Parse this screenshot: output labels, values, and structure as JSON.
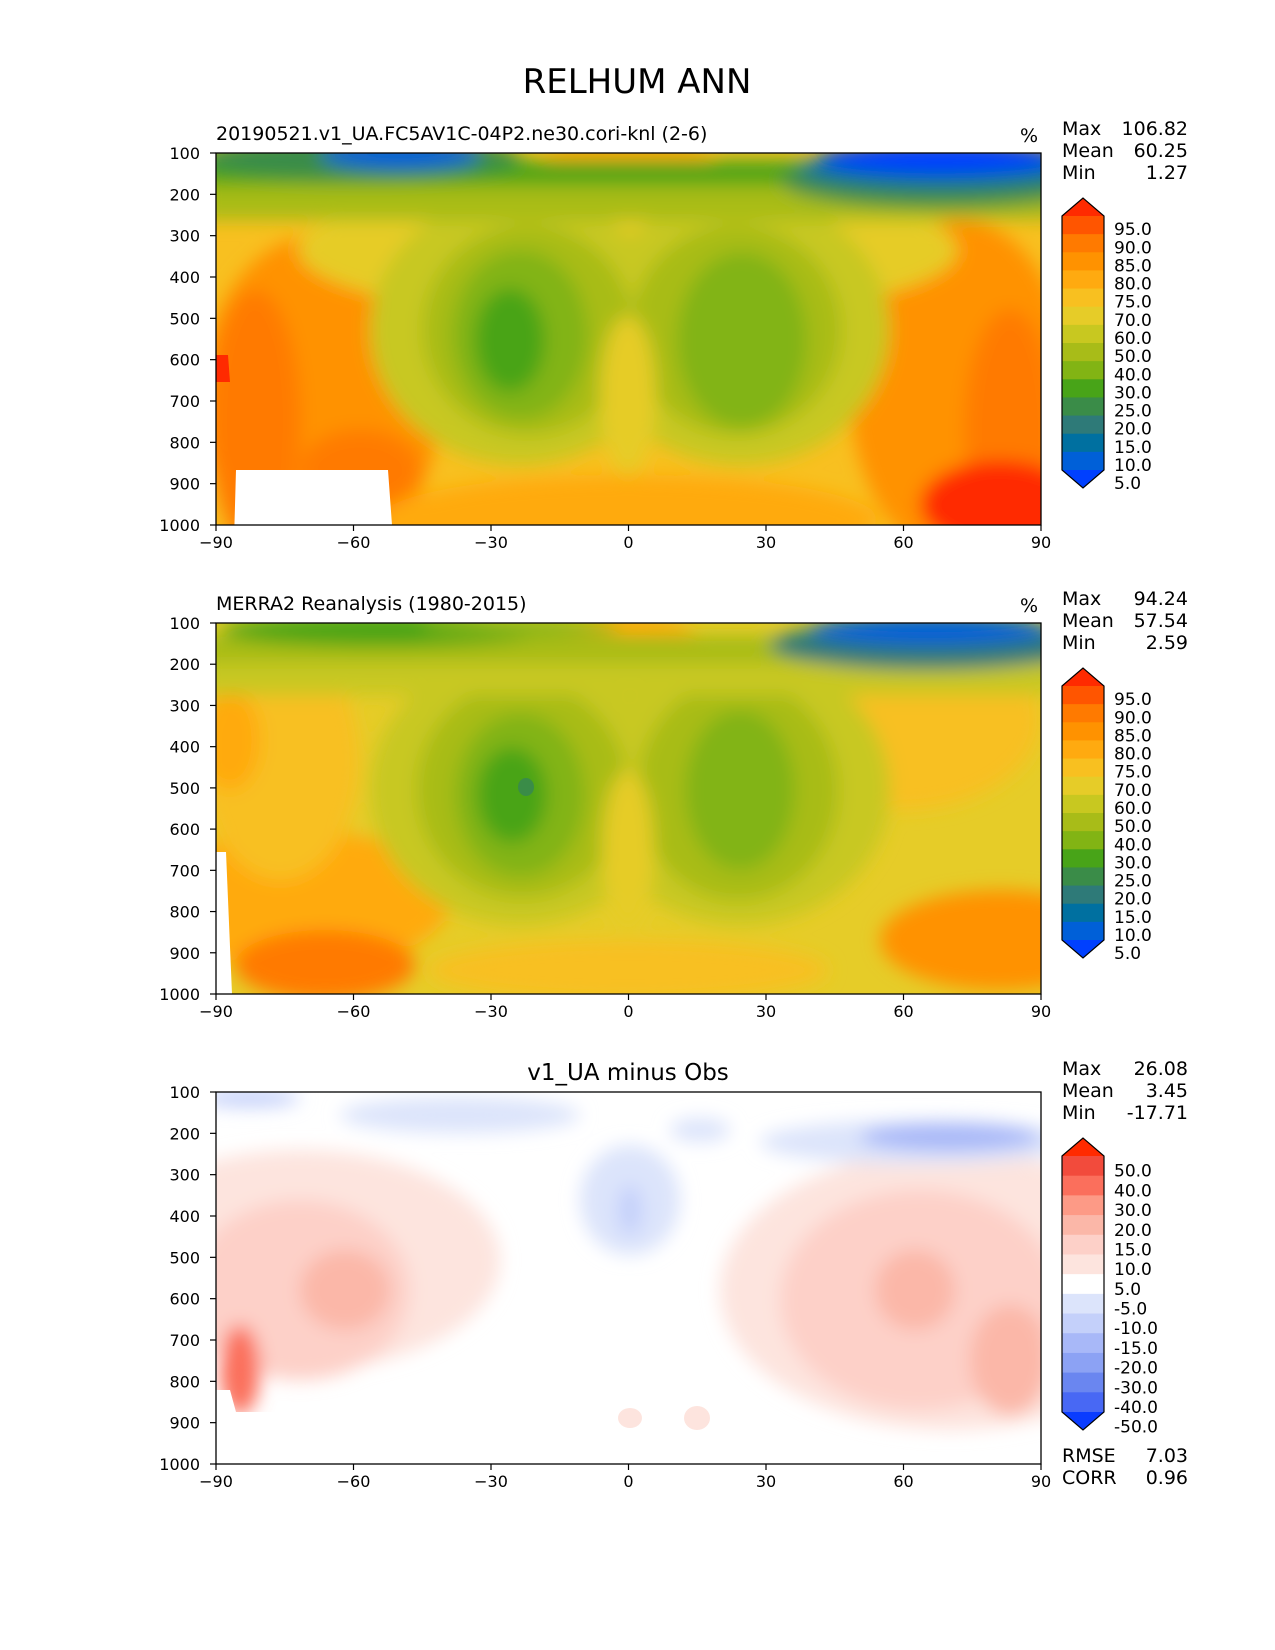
{
  "figure_title": "RELHUM ANN",
  "chart_data": [
    {
      "type": "contour",
      "title": "20190521.v1_UA.FC5AV1C-04P2.ne30.cori-knl (2-6)",
      "units": "%",
      "xlim": [
        -90,
        90
      ],
      "ylim": [
        1000,
        100
      ],
      "xticks": [
        "−90",
        "−60",
        "−30",
        "0",
        "30",
        "60",
        "90"
      ],
      "yticks": [
        "100",
        "200",
        "300",
        "400",
        "500",
        "600",
        "700",
        "800",
        "900",
        "1000"
      ],
      "stats": [
        {
          "label": "Max",
          "value": "106.82"
        },
        {
          "label": "Mean",
          "value": "60.25"
        },
        {
          "label": "Min",
          "value": "1.27"
        }
      ],
      "colorbar": {
        "labels": [
          "95.0",
          "90.0",
          "85.0",
          "80.0",
          "75.0",
          "70.0",
          "60.0",
          "50.0",
          "40.0",
          "30.0",
          "25.0",
          "20.0",
          "15.0",
          "10.0",
          "5.0"
        ],
        "colors": [
          "#ff2a00",
          "#ff5500",
          "#ff7a00",
          "#ff9200",
          "#ffaa10",
          "#f8c020",
          "#e6cc28",
          "#c8c820",
          "#a8bc18",
          "#82b414",
          "#48a418",
          "#3a8c48",
          "#2e7a78",
          "#0070a0",
          "#0060d8",
          "#0040ff"
        ]
      },
      "missing_region": "below-surface (white)"
    },
    {
      "type": "contour",
      "title": "MERRA2 Reanalysis (1980-2015)",
      "units": "%",
      "xlim": [
        -90,
        90
      ],
      "ylim": [
        1000,
        100
      ],
      "xticks": [
        "−90",
        "−60",
        "−30",
        "0",
        "30",
        "60",
        "90"
      ],
      "yticks": [
        "100",
        "200",
        "300",
        "400",
        "500",
        "600",
        "700",
        "800",
        "900",
        "1000"
      ],
      "stats": [
        {
          "label": "Max",
          "value": "94.24"
        },
        {
          "label": "Mean",
          "value": "57.54"
        },
        {
          "label": "Min",
          "value": "2.59"
        }
      ],
      "colorbar": {
        "labels": [
          "95.0",
          "90.0",
          "85.0",
          "80.0",
          "75.0",
          "70.0",
          "60.0",
          "50.0",
          "40.0",
          "30.0",
          "25.0",
          "20.0",
          "15.0",
          "10.0",
          "5.0"
        ],
        "colors": [
          "#ff2a00",
          "#ff5500",
          "#ff7a00",
          "#ff9200",
          "#ffaa10",
          "#f8c020",
          "#e6cc28",
          "#c8c820",
          "#a8bc18",
          "#82b414",
          "#48a418",
          "#3a8c48",
          "#2e7a78",
          "#0070a0",
          "#0060d8",
          "#0040ff"
        ]
      }
    },
    {
      "type": "contour",
      "title": "v1_UA minus Obs",
      "units": "",
      "xlim": [
        -90,
        90
      ],
      "ylim": [
        1000,
        100
      ],
      "xticks": [
        "−90",
        "−60",
        "−30",
        "0",
        "30",
        "60",
        "90"
      ],
      "yticks": [
        "100",
        "200",
        "300",
        "400",
        "500",
        "600",
        "700",
        "800",
        "900",
        "1000"
      ],
      "stats": [
        {
          "label": "Max",
          "value": "26.08"
        },
        {
          "label": "Mean",
          "value": "3.45"
        },
        {
          "label": "Min",
          "value": "-17.71"
        }
      ],
      "metrics": [
        {
          "label": "RMSE",
          "value": "7.03"
        },
        {
          "label": "CORR",
          "value": "0.96"
        }
      ],
      "colorbar": {
        "labels": [
          "50.0",
          "40.0",
          "30.0",
          "20.0",
          "15.0",
          "10.0",
          "5.0",
          "-5.0",
          "-10.0",
          "-15.0",
          "-20.0",
          "-30.0",
          "-40.0",
          "-50.0"
        ],
        "colors": [
          "#ff2a00",
          "#f24b3c",
          "#fb6f5c",
          "#fd9a86",
          "#fbb7a8",
          "#fdd0c8",
          "#fde4de",
          "#ffffff",
          "#dce4fb",
          "#c4d0fa",
          "#a8b8f8",
          "#8ca2f4",
          "#6a86f0",
          "#4868f4",
          "#0a3cff"
        ]
      }
    }
  ]
}
